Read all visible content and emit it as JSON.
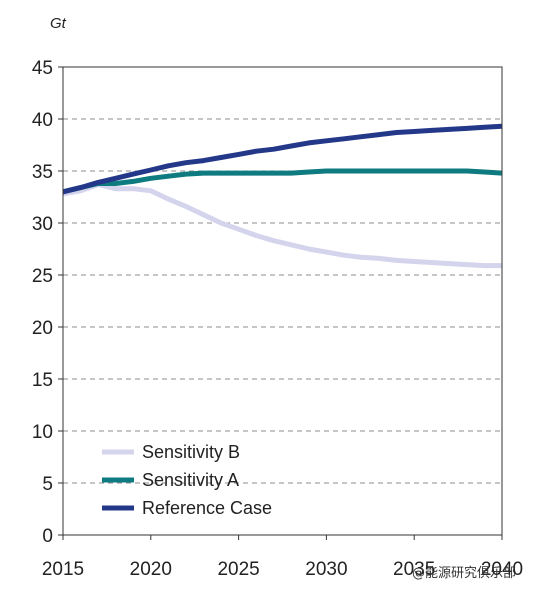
{
  "chart_data": {
    "type": "line",
    "unit_label": "Gt",
    "xlim": [
      2015,
      2040
    ],
    "ylim": [
      0,
      45
    ],
    "x_ticks": [
      2015,
      2020,
      2025,
      2030,
      2035,
      2040
    ],
    "y_ticks": [
      0,
      5,
      10,
      15,
      20,
      25,
      30,
      35,
      40,
      45
    ],
    "grid": "horizontal-dashed",
    "legend_position": "bottom-left",
    "x": [
      2015,
      2016,
      2017,
      2018,
      2019,
      2020,
      2021,
      2022,
      2023,
      2024,
      2025,
      2026,
      2027,
      2028,
      2029,
      2030,
      2031,
      2032,
      2033,
      2034,
      2035,
      2036,
      2037,
      2038,
      2039,
      2040
    ],
    "series": [
      {
        "name": "Sensitivity B",
        "color": "#d4d4ec",
        "values": [
          32.8,
          33.1,
          33.7,
          33.3,
          33.3,
          33.1,
          32.3,
          31.6,
          30.8,
          30.0,
          29.4,
          28.8,
          28.3,
          27.9,
          27.5,
          27.2,
          26.9,
          26.7,
          26.6,
          26.4,
          26.3,
          26.2,
          26.1,
          26.0,
          25.9,
          25.9
        ]
      },
      {
        "name": "Sensitivity A",
        "color": "#0e7b80",
        "values": [
          33.0,
          33.4,
          33.8,
          33.8,
          34.0,
          34.3,
          34.5,
          34.7,
          34.8,
          34.8,
          34.8,
          34.8,
          34.8,
          34.8,
          34.9,
          35.0,
          35.0,
          35.0,
          35.0,
          35.0,
          35.0,
          35.0,
          35.0,
          35.0,
          34.9,
          34.8
        ]
      },
      {
        "name": "Reference Case",
        "color": "#24388a",
        "values": [
          33.0,
          33.4,
          33.9,
          34.3,
          34.7,
          35.1,
          35.5,
          35.8,
          36.0,
          36.3,
          36.6,
          36.9,
          37.1,
          37.4,
          37.7,
          37.9,
          38.1,
          38.3,
          38.5,
          38.7,
          38.8,
          38.9,
          39.0,
          39.1,
          39.2,
          39.3
        ]
      }
    ]
  },
  "watermark_text": "@能源研究俱乐部"
}
